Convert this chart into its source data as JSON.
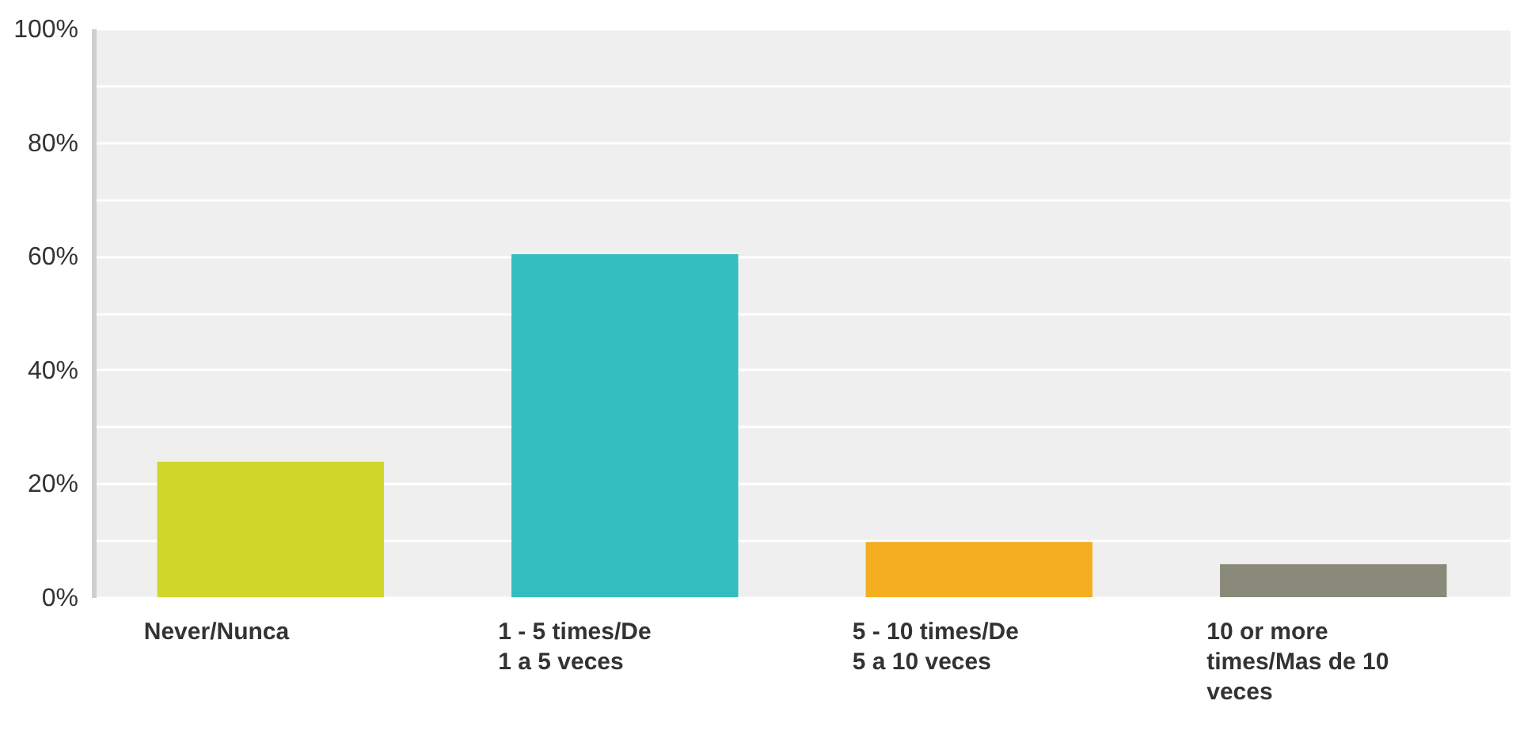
{
  "chart_data": {
    "type": "bar",
    "categories": [
      "Never/Nunca",
      "1 - 5 times/De 1 a 5 veces",
      "5 - 10 times/De 5 a 10 veces",
      "10 or more times/Mas de 10 veces"
    ],
    "values": [
      23.8,
      60.3,
      9.7,
      5.8
    ],
    "colors": [
      "#d0d62a",
      "#34bdbf",
      "#f5ae20",
      "#8a8a7a"
    ],
    "ylim": [
      0,
      100
    ],
    "yticks": [
      {
        "value": 0,
        "label": "0%"
      },
      {
        "value": 10,
        "label": null
      },
      {
        "value": 20,
        "label": "20%"
      },
      {
        "value": 30,
        "label": null
      },
      {
        "value": 40,
        "label": "40%"
      },
      {
        "value": 50,
        "label": null
      },
      {
        "value": 60,
        "label": "60%"
      },
      {
        "value": 70,
        "label": null
      },
      {
        "value": 80,
        "label": "80%"
      },
      {
        "value": 90,
        "label": null
      },
      {
        "value": 100,
        "label": "100%"
      }
    ],
    "grid": true
  }
}
